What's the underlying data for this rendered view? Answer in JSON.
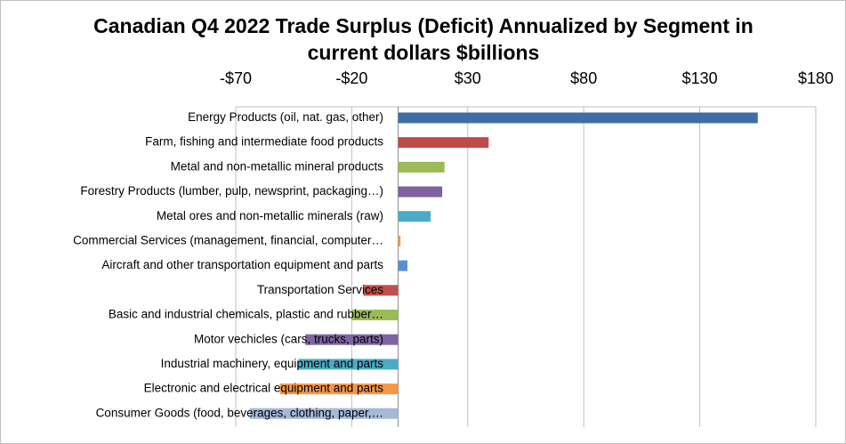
{
  "chart_data": {
    "type": "hbar",
    "title": "Canadian Q4 2022 Trade Surplus (Deficit) Annualized by Segment in current dollars $billions",
    "categories": [
      "Energy Products (oil, nat. gas, other)",
      "Farm, fishing and intermediate food products",
      "Metal and non-metallic mineral products",
      "Forestry Products (lumber, pulp, newsprint, packaging…)",
      "Metal ores and non-metallic minerals (raw)",
      "Commercial Services (management, financial, computer…",
      "Aircraft and other transportation equipment and parts",
      "Transportation Services",
      "Basic and industrial chemicals, plastic and rubber…",
      "Motor vechicles (cars, trucks, parts)",
      "Industrial machinery, equipment and parts",
      "Electronic and electrical equipment and parts",
      "Consumer Goods (food, beverages, clothing, paper,…"
    ],
    "values": [
      155,
      39,
      20,
      19,
      14,
      1,
      4,
      -15,
      -20,
      -40,
      -43,
      -51,
      -64
    ],
    "colors": [
      "#3f6ea5",
      "#be4b48",
      "#9bbb59",
      "#7f60a0",
      "#4bacc6",
      "#f79646",
      "#5b8fd0",
      "#c0504d",
      "#9bbb59",
      "#8064a2",
      "#4bacc6",
      "#f79646",
      "#a5b9d9"
    ],
    "xlim": [
      -70,
      180
    ],
    "xticks": [
      {
        "value": -70,
        "label": "-$70"
      },
      {
        "value": -20,
        "label": "-$20"
      },
      {
        "value": 30,
        "label": "$30"
      },
      {
        "value": 80,
        "label": "$80"
      },
      {
        "value": 130,
        "label": "$130"
      },
      {
        "value": 180,
        "label": "$180"
      }
    ],
    "grid": true
  }
}
